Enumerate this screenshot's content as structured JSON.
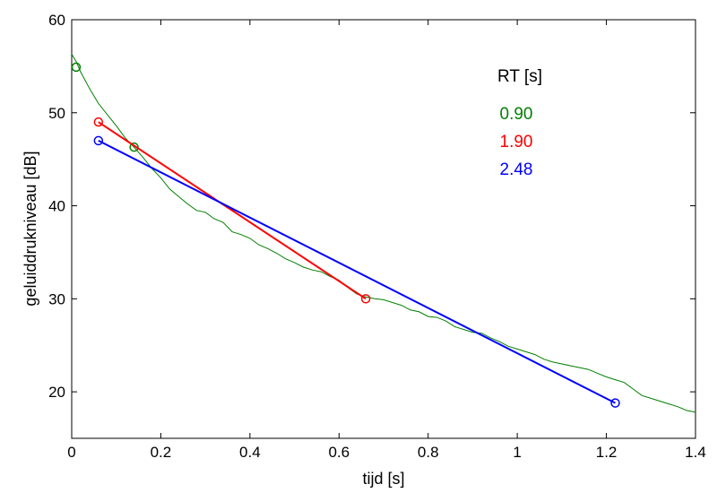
{
  "chart_data": {
    "type": "line",
    "xlabel": "tijd [s]",
    "ylabel": "geluiddrukniveau  [dB]",
    "xlim": [
      0,
      1.4
    ],
    "ylim": [
      15,
      60
    ],
    "xticks": [
      0,
      0.2,
      0.4,
      0.6,
      0.8,
      1,
      1.2,
      1.4
    ],
    "xtick_labels": [
      "0",
      "0.2",
      "0.4",
      "0.6",
      "0.8",
      "1",
      "1.2",
      "1.4"
    ],
    "yticks": [
      20,
      30,
      40,
      50,
      60
    ],
    "ytick_labels": [
      "20",
      "30",
      "40",
      "50",
      "60"
    ],
    "grid": false,
    "series": [
      {
        "color": "#007f00",
        "line": true,
        "x": [
          0,
          0.01,
          0.02,
          0.04,
          0.06,
          0.08,
          0.1,
          0.12,
          0.14,
          0.16,
          0.18,
          0.2,
          0.22,
          0.24,
          0.26,
          0.28,
          0.3,
          0.32,
          0.34,
          0.36,
          0.38,
          0.4,
          0.42,
          0.44,
          0.46,
          0.48,
          0.5,
          0.52,
          0.54,
          0.56,
          0.58,
          0.6,
          0.62,
          0.64,
          0.66,
          0.68,
          0.7,
          0.72,
          0.74,
          0.76,
          0.78,
          0.8,
          0.82,
          0.84,
          0.86,
          0.88,
          0.9,
          0.92,
          0.94,
          0.96,
          0.98,
          1.0,
          1.02,
          1.04,
          1.06,
          1.08,
          1.1,
          1.12,
          1.14,
          1.16,
          1.18,
          1.2,
          1.22,
          1.24,
          1.26,
          1.28,
          1.3,
          1.32,
          1.34,
          1.36,
          1.38,
          1.4
        ],
        "y": [
          56.3,
          55.5,
          54.4,
          52.6,
          51.0,
          49.8,
          48.6,
          47.3,
          46.3,
          45.2,
          44.0,
          43.0,
          41.8,
          41.0,
          40.2,
          39.5,
          39.3,
          38.6,
          38.2,
          37.2,
          36.9,
          36.5,
          35.8,
          35.4,
          34.9,
          34.3,
          33.9,
          33.4,
          33.1,
          32.9,
          32.4,
          32.0,
          31.2,
          30.5,
          30.2,
          30.0,
          29.9,
          29.6,
          29.3,
          28.8,
          28.6,
          28.1,
          28.0,
          27.6,
          27.0,
          26.7,
          26.4,
          26.3,
          25.8,
          25.4,
          24.9,
          24.6,
          24.3,
          24.0,
          23.5,
          23.2,
          23.0,
          22.8,
          22.6,
          22.4,
          22.0,
          21.6,
          21.3,
          21.0,
          20.3,
          19.6,
          19.3,
          19.0,
          18.7,
          18.4,
          18.0,
          17.8
        ]
      },
      {
        "color": "#007f00",
        "line": false,
        "x": [
          0.01,
          0.14
        ],
        "y": [
          54.9,
          46.3
        ]
      },
      {
        "color": "#ff0000",
        "line": true,
        "x": [
          0.06,
          0.66
        ],
        "y": [
          49.0,
          30.0
        ]
      },
      {
        "color": "#0000ff",
        "line": true,
        "x": [
          0.06,
          1.22
        ],
        "y": [
          47.0,
          18.8
        ]
      }
    ],
    "annotations": {
      "header": "RT [s]",
      "values": [
        {
          "text": "0.90",
          "color": "#007f00"
        },
        {
          "text": "1.90",
          "color": "#ff0000"
        },
        {
          "text": "2.48",
          "color": "#0000ff"
        }
      ]
    }
  }
}
